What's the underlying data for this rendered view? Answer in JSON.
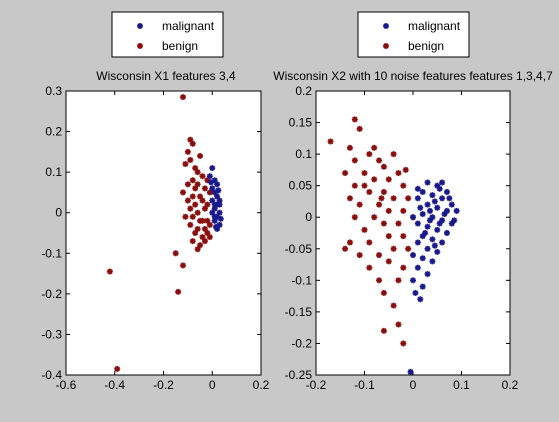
{
  "chart_data": [
    {
      "type": "scatter",
      "title": "Wisconsin X1 features 3,4",
      "xlim": [
        -0.6,
        0.2
      ],
      "ylim": [
        -0.4,
        0.3
      ],
      "xticks": [
        -0.6,
        -0.4,
        -0.2,
        0,
        0.2
      ],
      "xtick_labels": [
        "-0.6",
        "-0.4",
        "-0.2",
        "0",
        "0.2"
      ],
      "yticks": [
        -0.4,
        -0.3,
        -0.2,
        -0.1,
        0,
        0.1,
        0.2,
        0.3
      ],
      "ytick_labels": [
        "-0.4",
        "-0.3",
        "-0.2",
        "-0.1",
        "0",
        "0.1",
        "0.2",
        "0.3"
      ],
      "grid": false,
      "legend": "top-center",
      "series": [
        {
          "name": "malignant",
          "color": "#1a1a8c",
          "points": [
            [
              0.0,
              0.11
            ],
            [
              -0.01,
              0.09
            ],
            [
              0.01,
              0.08
            ],
            [
              0.02,
              0.07
            ],
            [
              0.0,
              0.06
            ],
            [
              0.01,
              0.05
            ],
            [
              0.02,
              0.04
            ],
            [
              0.03,
              0.03
            ],
            [
              0.02,
              0.02
            ],
            [
              0.01,
              0.01
            ],
            [
              0.03,
              0.0
            ],
            [
              0.02,
              -0.01
            ],
            [
              0.01,
              -0.02
            ],
            [
              0.03,
              -0.03
            ],
            [
              0.02,
              -0.04
            ],
            [
              0.0,
              0.03
            ],
            [
              0.01,
              -0.01
            ],
            [
              0.03,
              0.02
            ],
            [
              -0.005,
              0.075
            ],
            [
              0.025,
              0.055
            ],
            [
              0.015,
              -0.035
            ],
            [
              0.035,
              -0.015
            ],
            [
              0.0,
              0.0
            ],
            [
              0.01,
              0.02
            ]
          ]
        },
        {
          "name": "benign",
          "color": "#8b0e0e",
          "points": [
            [
              -0.12,
              0.285
            ],
            [
              -0.09,
              0.18
            ],
            [
              -0.08,
              0.17
            ],
            [
              -0.1,
              0.15
            ],
            [
              -0.05,
              0.14
            ],
            [
              -0.09,
              0.13
            ],
            [
              -0.11,
              0.12
            ],
            [
              -0.07,
              0.11
            ],
            [
              -0.06,
              0.1
            ],
            [
              -0.04,
              0.09
            ],
            [
              -0.08,
              0.08
            ],
            [
              -0.02,
              0.08
            ],
            [
              -0.1,
              0.07
            ],
            [
              -0.06,
              0.07
            ],
            [
              -0.03,
              0.06
            ],
            [
              -0.12,
              0.05
            ],
            [
              -0.08,
              0.04
            ],
            [
              -0.05,
              0.04
            ],
            [
              -0.01,
              0.05
            ],
            [
              -0.1,
              0.03
            ],
            [
              -0.07,
              0.02
            ],
            [
              -0.04,
              0.03
            ],
            [
              -0.09,
              0.01
            ],
            [
              -0.06,
              0.0
            ],
            [
              -0.03,
              0.01
            ],
            [
              -0.11,
              -0.01
            ],
            [
              -0.08,
              -0.01
            ],
            [
              -0.05,
              -0.02
            ],
            [
              -0.02,
              -0.02
            ],
            [
              -0.09,
              -0.03
            ],
            [
              -0.06,
              -0.04
            ],
            [
              -0.03,
              -0.04
            ],
            [
              -0.01,
              -0.03
            ],
            [
              -0.07,
              -0.05
            ],
            [
              -0.04,
              -0.06
            ],
            [
              -0.02,
              -0.05
            ],
            [
              -0.08,
              -0.07
            ],
            [
              -0.05,
              -0.08
            ],
            [
              -0.03,
              -0.07
            ],
            [
              -0.06,
              -0.09
            ],
            [
              -0.01,
              -0.06
            ],
            [
              -0.04,
              -0.02
            ],
            [
              -0.07,
              0.06
            ],
            [
              -0.02,
              0.02
            ],
            [
              -0.15,
              -0.1
            ],
            [
              -0.12,
              -0.13
            ],
            [
              -0.14,
              -0.195
            ],
            [
              -0.42,
              -0.145
            ],
            [
              -0.39,
              -0.385
            ]
          ]
        }
      ]
    },
    {
      "type": "scatter",
      "title": "Wisconsin X2 with 10 noise features features 1,3,4,7",
      "xlim": [
        -0.2,
        0.2
      ],
      "ylim": [
        -0.25,
        0.2
      ],
      "xticks": [
        -0.2,
        -0.1,
        0,
        0.1,
        0.2
      ],
      "xtick_labels": [
        "-0.2",
        "-0.1",
        "0",
        "0.1",
        "0.2"
      ],
      "yticks": [
        -0.25,
        -0.2,
        -0.15,
        -0.1,
        -0.05,
        0,
        0.05,
        0.1,
        0.15,
        0.2
      ],
      "ytick_labels": [
        "-0.25",
        "-0.2",
        "-0.15",
        "-0.1",
        "-0.05",
        "0",
        "0.05",
        "0.1",
        "0.15",
        "0.2"
      ],
      "grid": false,
      "legend": "top-center",
      "series": [
        {
          "name": "malignant",
          "color": "#1a1a8c",
          "points": [
            [
              0.03,
              0.055
            ],
            [
              0.05,
              0.05
            ],
            [
              0.07,
              0.04
            ],
            [
              0.02,
              0.04
            ],
            [
              0.04,
              0.035
            ],
            [
              0.06,
              0.03
            ],
            [
              0.08,
              0.02
            ],
            [
              0.01,
              0.03
            ],
            [
              0.03,
              0.02
            ],
            [
              0.05,
              0.015
            ],
            [
              0.07,
              0.01
            ],
            [
              0.09,
              0.01
            ],
            [
              0.02,
              0.005
            ],
            [
              0.04,
              0.0
            ],
            [
              0.06,
              -0.005
            ],
            [
              0.08,
              -0.01
            ],
            [
              0.0,
              0.0
            ],
            [
              0.01,
              -0.01
            ],
            [
              0.03,
              -0.015
            ],
            [
              0.05,
              -0.02
            ],
            [
              0.07,
              -0.025
            ],
            [
              0.02,
              -0.03
            ],
            [
              0.04,
              -0.035
            ],
            [
              0.06,
              -0.04
            ],
            [
              0.01,
              -0.04
            ],
            [
              0.03,
              -0.05
            ],
            [
              0.05,
              -0.055
            ],
            [
              0.0,
              -0.06
            ],
            [
              0.02,
              -0.065
            ],
            [
              0.04,
              -0.07
            ],
            [
              0.01,
              -0.08
            ],
            [
              0.03,
              -0.09
            ],
            [
              0.0,
              -0.1
            ],
            [
              0.02,
              -0.11
            ],
            [
              0.005,
              -0.12
            ],
            [
              0.015,
              -0.13
            ],
            [
              -0.005,
              -0.245
            ],
            [
              0.045,
              0.025
            ],
            [
              0.065,
              0.005
            ],
            [
              0.035,
              -0.005
            ],
            [
              0.055,
              0.045
            ],
            [
              0.025,
              -0.025
            ],
            [
              0.075,
              0.03
            ],
            [
              0.015,
              0.015
            ],
            [
              0.085,
              -0.005
            ],
            [
              0.045,
              -0.045
            ],
            [
              0.035,
              0.01
            ],
            [
              0.055,
              -0.01
            ],
            [
              0.01,
              0.045
            ],
            [
              0.06,
              0.055
            ]
          ]
        },
        {
          "name": "benign",
          "color": "#8b0e0e",
          "points": [
            [
              -0.12,
              0.155
            ],
            [
              -0.17,
              0.12
            ],
            [
              -0.11,
              0.14
            ],
            [
              -0.13,
              0.11
            ],
            [
              -0.09,
              0.1
            ],
            [
              -0.12,
              0.09
            ],
            [
              -0.07,
              0.09
            ],
            [
              -0.14,
              0.07
            ],
            [
              -0.1,
              0.07
            ],
            [
              -0.06,
              0.08
            ],
            [
              -0.08,
              0.06
            ],
            [
              -0.12,
              0.05
            ],
            [
              -0.05,
              0.06
            ],
            [
              -0.03,
              0.07
            ],
            [
              -0.13,
              0.03
            ],
            [
              -0.09,
              0.04
            ],
            [
              -0.06,
              0.04
            ],
            [
              -0.02,
              0.05
            ],
            [
              -0.11,
              0.02
            ],
            [
              -0.07,
              0.02
            ],
            [
              -0.04,
              0.03
            ],
            [
              -0.01,
              0.03
            ],
            [
              -0.12,
              0.0
            ],
            [
              -0.08,
              0.0
            ],
            [
              -0.05,
              0.01
            ],
            [
              -0.02,
              0.01
            ],
            [
              -0.1,
              -0.02
            ],
            [
              -0.06,
              -0.01
            ],
            [
              -0.03,
              -0.01
            ],
            [
              0.0,
              0.0
            ],
            [
              -0.13,
              -0.04
            ],
            [
              -0.09,
              -0.04
            ],
            [
              -0.05,
              -0.03
            ],
            [
              -0.02,
              -0.03
            ],
            [
              -0.11,
              -0.06
            ],
            [
              -0.07,
              -0.06
            ],
            [
              -0.04,
              -0.05
            ],
            [
              -0.01,
              -0.05
            ],
            [
              -0.09,
              -0.08
            ],
            [
              -0.05,
              -0.07
            ],
            [
              -0.02,
              -0.08
            ],
            [
              -0.07,
              -0.1
            ],
            [
              -0.03,
              -0.1
            ],
            [
              -0.06,
              -0.12
            ],
            [
              -0.04,
              -0.14
            ],
            [
              -0.03,
              -0.17
            ],
            [
              -0.06,
              -0.18
            ],
            [
              -0.02,
              -0.2
            ],
            [
              -0.14,
              -0.05
            ],
            [
              -0.08,
              0.11
            ],
            [
              -0.04,
              0.1
            ],
            [
              -0.1,
              0.05
            ],
            [
              -0.015,
              0.075
            ],
            [
              -0.065,
              0.03
            ]
          ]
        }
      ]
    }
  ]
}
